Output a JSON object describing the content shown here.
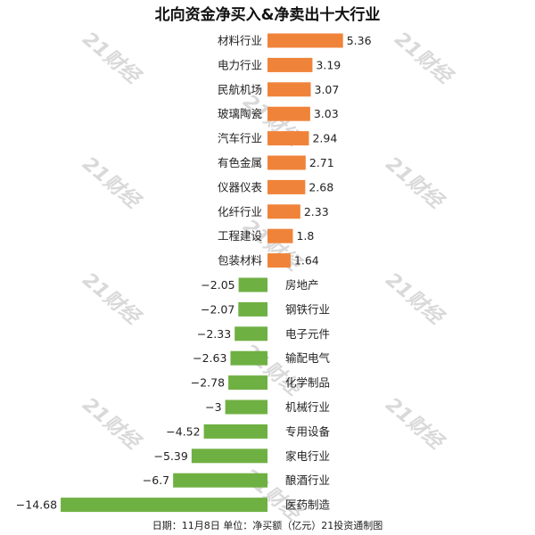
{
  "chart_data": {
    "type": "bar",
    "orientation": "horizontal",
    "title": "北向资金净买入&净卖出十大行业",
    "categories": [
      "材料行业",
      "电力行业",
      "民航机场",
      "玻璃陶瓷",
      "汽车行业",
      "有色金属",
      "仪器仪表",
      "化纤行业",
      "工程建设",
      "包装材料",
      "房地产",
      "钢铁行业",
      "电子元件",
      "输配电气",
      "化学制品",
      "机械行业",
      "专用设备",
      "家电行业",
      "酿酒行业",
      "医药制造"
    ],
    "values": [
      5.36,
      3.19,
      3.07,
      3.03,
      2.94,
      2.71,
      2.68,
      2.33,
      1.8,
      1.64,
      -2.05,
      -2.07,
      -2.33,
      -2.63,
      -2.78,
      -3,
      -4.52,
      -5.39,
      -6.7,
      -14.68
    ],
    "value_labels": [
      "5.36",
      "3.19",
      "3.07",
      "3.03",
      "2.94",
      "2.71",
      "2.68",
      "2.33",
      "1.8",
      "1.64",
      "−2.05",
      "−2.07",
      "−2.33",
      "−2.63",
      "−2.78",
      "−3",
      "−4.52",
      "−5.39",
      "−6.7",
      "−14.68"
    ],
    "colors": {
      "positive": "#f0833a",
      "negative": "#6fb043"
    },
    "footnote": "日期：11月8日 单位：净买额（亿元）21投资通制图",
    "watermark": "21财经"
  }
}
